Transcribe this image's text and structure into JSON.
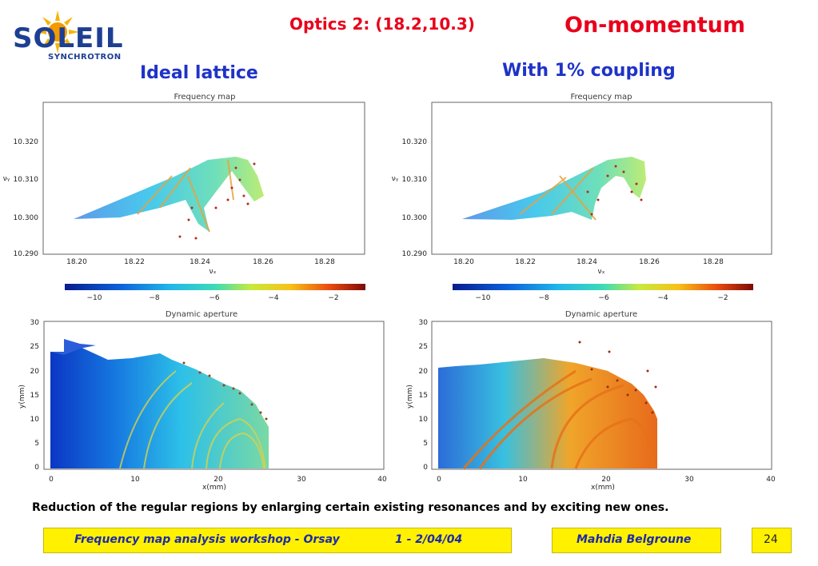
{
  "logo": {
    "brand": "SOLEIL",
    "sub": "SYNCHROTRON"
  },
  "header": {
    "optics": "Optics 2: (18.2,10.3)",
    "momentum": "On-momentum",
    "left_caption": "Ideal lattice",
    "right_caption": "With 1% coupling"
  },
  "freq_map": {
    "title": "Frequency map",
    "xlabel": "νₓ",
    "ylabel": "νᵧ",
    "xticks": [
      "18.20",
      "18.22",
      "18.24",
      "18.26",
      "18.28"
    ],
    "yticks": [
      "10.320",
      "10.310",
      "10.300",
      "10.290"
    ]
  },
  "colorbar": {
    "ticks": [
      "−10",
      "−8",
      "−6",
      "−4",
      "−2"
    ]
  },
  "dyn_ap": {
    "title": "Dynamic aperture",
    "xlabel": "x(mm)",
    "ylabel": "y(mm)",
    "xticks": [
      "0",
      "10",
      "20",
      "30",
      "40"
    ],
    "yticks": [
      "30",
      "25",
      "20",
      "15",
      "10",
      "5",
      "0"
    ]
  },
  "caption": "Reduction of the regular regions by enlarging certain existing resonances and by exciting new ones.",
  "footer": {
    "workshop": "Frequency map analysis workshop - Orsay",
    "date": "1 - 2/04/04",
    "author": "Mahdia Belgroune",
    "page": "24"
  },
  "colors": {
    "red": "#e8001a",
    "blue": "#1f33c8",
    "yellow": "#fff100"
  }
}
